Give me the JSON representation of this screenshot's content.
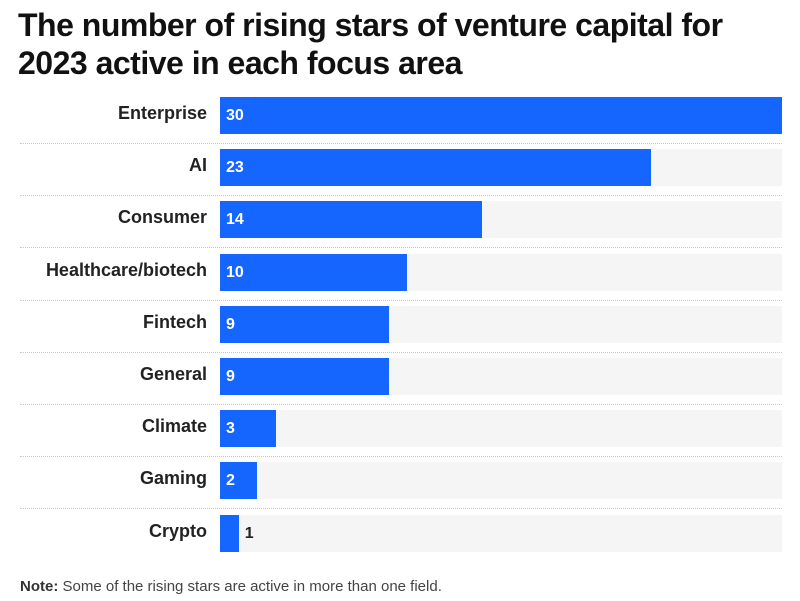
{
  "title": "The number of rising stars of venture capital for 2023 active in each focus area",
  "note": {
    "label": "Note:",
    "text": "Some of the rising stars are active in more than one field."
  },
  "colors": {
    "bar": "#1565ff",
    "track": "#f5f5f5"
  },
  "chart_data": {
    "type": "bar",
    "orientation": "horizontal",
    "title": "The number of rising stars of venture capital for 2023 active in each focus area",
    "categories": [
      "Enterprise",
      "AI",
      "Consumer",
      "Healthcare/biotech",
      "Fintech",
      "General",
      "Climate",
      "Gaming",
      "Crypto"
    ],
    "values": [
      30,
      23,
      14,
      10,
      9,
      9,
      3,
      2,
      1
    ],
    "xlim": [
      0,
      30
    ],
    "grid": false,
    "legend": "none",
    "data_labels": true
  }
}
